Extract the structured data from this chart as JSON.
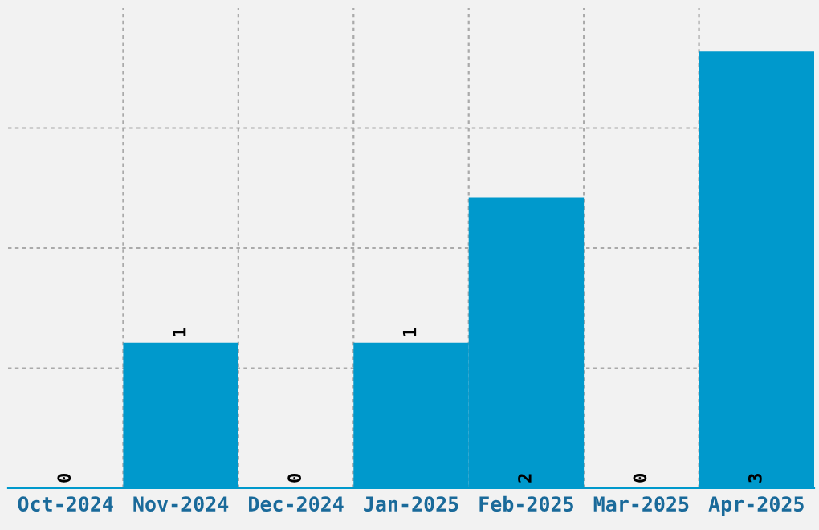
{
  "chart_data": {
    "type": "bar",
    "categories": [
      "Oct-2024",
      "Nov-2024",
      "Dec-2024",
      "Jan-2025",
      "Feb-2025",
      "Mar-2025",
      "Apr-2025"
    ],
    "values": [
      0,
      1,
      0,
      1,
      2,
      0,
      3
    ],
    "color": "#0099cc",
    "ylim": [
      0,
      3.3
    ],
    "yticks": [
      {
        "value": 0.825,
        "label": null
      },
      {
        "value": 1.65,
        "label": null
      },
      {
        "value": 2.475,
        "label": null
      }
    ],
    "tick_labels": "x",
    "grid": true,
    "data_labels": true
  }
}
